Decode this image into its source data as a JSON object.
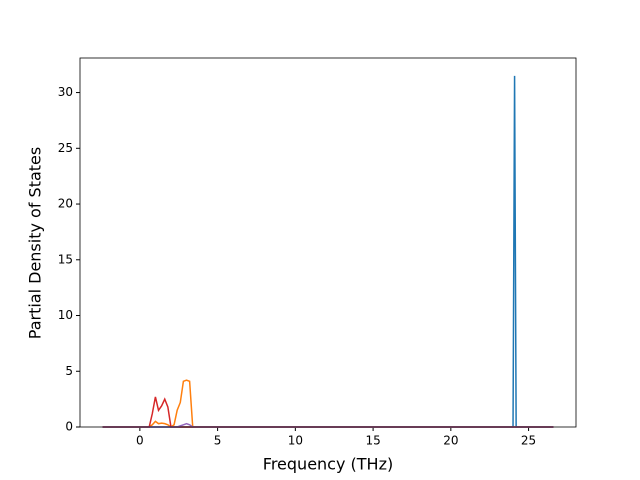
{
  "chart_data": {
    "type": "line",
    "xlabel": "Frequency (THz)",
    "ylabel": "Partial Density of States",
    "x": [
      -2.4,
      0.6,
      0.8,
      1.0,
      1.2,
      1.4,
      1.6,
      1.8,
      2.0,
      2.2,
      2.4,
      2.6,
      2.8,
      3.0,
      3.2,
      3.4,
      3.6,
      23.8,
      24.0,
      24.1,
      24.2,
      24.4,
      26.6
    ],
    "series": [
      {
        "color": "#1f77b4",
        "values": [
          0,
          0,
          0,
          0,
          0,
          0,
          0,
          0,
          0,
          0,
          0,
          0,
          0,
          0,
          0,
          0,
          0,
          0,
          0,
          31.5,
          0,
          0,
          0
        ]
      },
      {
        "color": "#ff7f0e",
        "values": [
          0,
          0,
          0.2,
          0.5,
          0.3,
          0.35,
          0.3,
          0.2,
          0,
          0.2,
          1.5,
          2.2,
          4.1,
          4.2,
          4.1,
          0,
          0,
          0,
          0,
          0,
          0,
          0,
          0
        ]
      },
      {
        "color": "#d62728",
        "values": [
          0,
          0,
          1.2,
          2.7,
          1.5,
          1.9,
          2.5,
          1.8,
          0,
          0,
          0,
          0,
          0,
          0,
          0,
          0,
          0,
          0,
          0,
          0,
          0,
          0,
          0
        ]
      },
      {
        "color": "#9467bd",
        "values": [
          0,
          0,
          0,
          0,
          0,
          0,
          0,
          0,
          0,
          0,
          0,
          0.1,
          0.2,
          0.3,
          0.2,
          0,
          0,
          0,
          0,
          0,
          0,
          0,
          0
        ]
      }
    ],
    "xlim": [
      -3.85,
      28.05
    ],
    "xticks": [
      0,
      5,
      10,
      15,
      20,
      25
    ],
    "ylim": [
      0,
      33.1
    ],
    "yticks": [
      0,
      5,
      10,
      15,
      20,
      25,
      30
    ]
  }
}
